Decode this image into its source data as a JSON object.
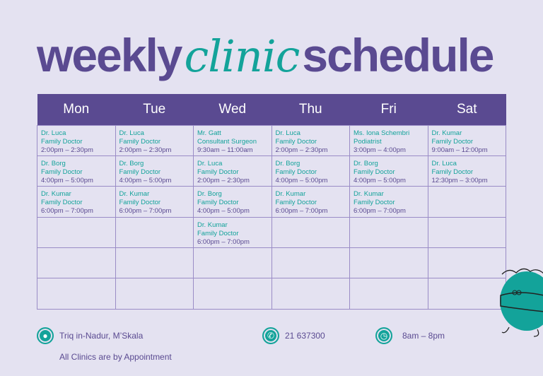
{
  "title": {
    "part1": "weekly",
    "part2": "clinic",
    "part3": "schedule"
  },
  "colors": {
    "purple": "#5a4a91",
    "teal": "#13a39a",
    "background": "#e4e2f1"
  },
  "days": [
    "Mon",
    "Tue",
    "Wed",
    "Thu",
    "Fri",
    "Sat"
  ],
  "schedule": [
    [
      {
        "doctor": "Dr. Luca",
        "role": "Family Doctor",
        "time": "2:00pm – 2:30pm"
      },
      {
        "doctor": "Dr. Borg",
        "role": "Family Doctor",
        "time": "4:00pm – 5:00pm"
      },
      {
        "doctor": "Dr. Kumar",
        "role": "Family Doctor",
        "time": "6:00pm – 7:00pm"
      }
    ],
    [
      {
        "doctor": "Dr. Luca",
        "role": "Family Doctor",
        "time": "2:00pm – 2:30pm"
      },
      {
        "doctor": "Dr. Borg",
        "role": "Family Doctor",
        "time": "4:00pm – 5:00pm"
      },
      {
        "doctor": "Dr. Kumar",
        "role": "Family Doctor",
        "time": "6:00pm – 7:00pm"
      }
    ],
    [
      {
        "doctor": "Mr. Gatt",
        "role": "Consultant Surgeon",
        "time": "9:30am – 11:00am"
      },
      {
        "doctor": "Dr. Luca",
        "role": "Family Doctor",
        "time": "2:00pm – 2:30pm"
      },
      {
        "doctor": "Dr. Borg",
        "role": "Family Doctor",
        "time": "4:00pm – 5:00pm"
      },
      {
        "doctor": "Dr. Kumar",
        "role": "Family Doctor",
        "time": "6:00pm – 7:00pm"
      }
    ],
    [
      {
        "doctor": "Dr. Luca",
        "role": "Family Doctor",
        "time": "2:00pm – 2:30pm"
      },
      {
        "doctor": "Dr. Borg",
        "role": "Family Doctor",
        "time": "4:00pm – 5:00pm"
      },
      {
        "doctor": "Dr. Kumar",
        "role": "Family Doctor",
        "time": "6:00pm – 7:00pm"
      }
    ],
    [
      {
        "doctor": "Ms. Iona Schembri",
        "role": "Podiatrist",
        "time": "3:00pm – 4:00pm"
      },
      {
        "doctor": "Dr. Borg",
        "role": "Family Doctor",
        "time": "4:00pm – 5:00pm"
      },
      {
        "doctor": "Dr. Kumar",
        "role": "Family Doctor",
        "time": "6:00pm – 7:00pm"
      }
    ],
    [
      {
        "doctor": "Dr. Kumar",
        "role": "Family Doctor",
        "time": "9:00am – 12:00pm"
      },
      {
        "doctor": "Dr. Luca",
        "role": "Family Doctor",
        "time": "12:30pm – 3:00pm"
      }
    ]
  ],
  "footer": {
    "address": "Triq in-Nadur, M’Skala",
    "phone": "21 637300",
    "hours": "8am – 8pm",
    "note": "All Clinics are by Appointment",
    "icons": [
      "location-pin-icon",
      "phone-icon",
      "clock-icon"
    ]
  }
}
